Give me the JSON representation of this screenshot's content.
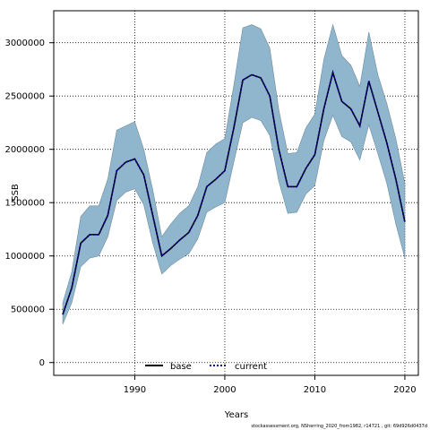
{
  "chart_data": {
    "type": "line",
    "xlabel": "Years",
    "ylabel": "SSB",
    "xlim": [
      1981,
      2021.5
    ],
    "ylim": [
      -120000,
      3300000
    ],
    "x_ticks": [
      1990,
      2000,
      2010,
      2020
    ],
    "y_ticks": [
      0,
      500000,
      1000000,
      1500000,
      2000000,
      2500000,
      3000000
    ],
    "grid": true,
    "legend_position": "bottom-center",
    "colors": {
      "band": "#8fb6cc",
      "band_edge": "#6e8c9e",
      "base": "#000000",
      "current": "#00008b"
    },
    "years": [
      1982,
      1983,
      1984,
      1985,
      1986,
      1987,
      1988,
      1989,
      1990,
      1991,
      1992,
      1993,
      1994,
      1995,
      1996,
      1997,
      1998,
      1999,
      2000,
      2001,
      2002,
      2003,
      2004,
      2005,
      2006,
      2007,
      2008,
      2009,
      2010,
      2011,
      2012,
      2013,
      2014,
      2015,
      2016,
      2017,
      2018,
      2019,
      2020
    ],
    "series": [
      {
        "name": "current",
        "style": "dotted",
        "values": [
          450000,
          700000,
          1120000,
          1200000,
          1200000,
          1380000,
          1800000,
          1880000,
          1910000,
          1760000,
          1380000,
          1000000,
          1070000,
          1150000,
          1220000,
          1380000,
          1650000,
          1720000,
          1800000,
          2200000,
          2650000,
          2700000,
          2670000,
          2500000,
          2000000,
          1650000,
          1650000,
          1820000,
          1950000,
          2380000,
          2720000,
          2450000,
          2380000,
          2220000,
          2640000,
          2350000,
          2060000,
          1720000,
          1320000
        ],
        "lower": [
          360000,
          560000,
          900000,
          980000,
          1000000,
          1180000,
          1520000,
          1600000,
          1630000,
          1480000,
          1120000,
          830000,
          910000,
          970000,
          1020000,
          1160000,
          1410000,
          1460000,
          1500000,
          1880000,
          2250000,
          2300000,
          2270000,
          2130000,
          1700000,
          1400000,
          1410000,
          1580000,
          1660000,
          2080000,
          2320000,
          2120000,
          2070000,
          1900000,
          2230000,
          1960000,
          1680000,
          1300000,
          980000
        ],
        "upper": [
          560000,
          850000,
          1370000,
          1470000,
          1470000,
          1720000,
          2180000,
          2220000,
          2260000,
          2000000,
          1620000,
          1180000,
          1300000,
          1400000,
          1470000,
          1650000,
          1970000,
          2050000,
          2100000,
          2600000,
          3140000,
          3170000,
          3130000,
          2950000,
          2370000,
          1960000,
          1970000,
          2200000,
          2330000,
          2840000,
          3170000,
          2880000,
          2790000,
          2590000,
          3100000,
          2700000,
          2430000,
          2100000,
          1680000
        ]
      },
      {
        "name": "base",
        "style": "solid",
        "values": [
          450000,
          700000,
          1120000,
          1200000,
          1200000,
          1380000,
          1800000,
          1880000,
          1910000,
          1760000,
          1380000,
          1000000,
          1070000,
          1150000,
          1220000,
          1380000,
          1650000,
          1720000,
          1800000,
          2200000,
          2650000,
          2700000,
          2670000,
          2500000,
          2000000,
          1650000,
          1650000,
          1820000,
          1950000,
          2380000,
          2720000,
          2450000,
          2380000,
          2220000,
          2640000,
          2350000,
          2060000,
          1720000,
          1320000
        ]
      }
    ],
    "legend": [
      {
        "label": "base",
        "style": "solid"
      },
      {
        "label": "current",
        "style": "dotted"
      }
    ],
    "footer": "stockassessment.org, NSherring_2020_from1982, r14721 , git: 69d926d0437d"
  }
}
